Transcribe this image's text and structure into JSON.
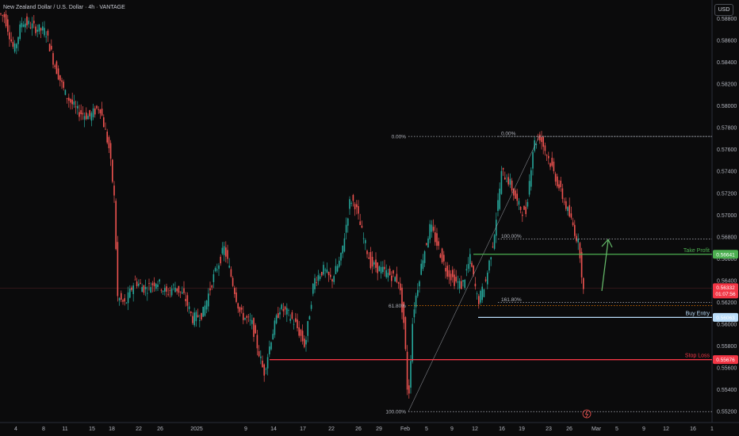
{
  "header": {
    "title": "New Zealand Dollar / U.S. Dollar · 4h · VANTAGE",
    "currency_button": "USD"
  },
  "colors": {
    "background": "#0b0b0c",
    "bull": "#26a69a",
    "bear": "#ef5350",
    "take_profit": "#4caf50",
    "stop_loss": "#f23645",
    "buy_entry": "#bbdefb",
    "fib_line": "#b2b5be",
    "fib_618": "#f57c00",
    "arrow": "#66bb6a"
  },
  "chart_data": {
    "type": "candlestick",
    "symbol": "New Zealand Dollar / U.S. Dollar",
    "timeframe": "4h",
    "ylim": [
      0.551,
      0.5897
    ],
    "y_ticks": [
      "0.58800",
      "0.58600",
      "0.58400",
      "0.58200",
      "0.58000",
      "0.57800",
      "0.57600",
      "0.57400",
      "0.57200",
      "0.57000",
      "0.56800",
      "0.56600",
      "0.56400",
      "0.56200",
      "0.56000",
      "0.55800",
      "0.55600",
      "0.55400",
      "0.55200"
    ],
    "x_ticks": [
      "4",
      "8",
      "11",
      "15",
      "18",
      "22",
      "26",
      "2025",
      "9",
      "14",
      "17",
      "22",
      "26",
      "29",
      "Feb",
      "5",
      "9",
      "12",
      "16",
      "19",
      "23",
      "26",
      "Mar",
      "5",
      "9",
      "12",
      "16",
      "1"
    ],
    "price_path": [
      [
        0,
        0.5885
      ],
      [
        8,
        0.5882
      ],
      [
        20,
        0.585
      ],
      [
        30,
        0.5878
      ],
      [
        45,
        0.5872
      ],
      [
        60,
        0.5868
      ],
      [
        70,
        0.584
      ],
      [
        85,
        0.581
      ],
      [
        100,
        0.5795
      ],
      [
        115,
        0.579
      ],
      [
        128,
        0.58
      ],
      [
        140,
        0.576
      ],
      [
        147,
        0.571
      ],
      [
        150,
        0.5625
      ],
      [
        160,
        0.5618
      ],
      [
        172,
        0.564
      ],
      [
        185,
        0.5632
      ],
      [
        200,
        0.564
      ],
      [
        212,
        0.5628
      ],
      [
        222,
        0.5635
      ],
      [
        235,
        0.5625
      ],
      [
        245,
        0.5605
      ],
      [
        258,
        0.561
      ],
      [
        270,
        0.564
      ],
      [
        285,
        0.567
      ],
      [
        295,
        0.564
      ],
      [
        305,
        0.561
      ],
      [
        320,
        0.56
      ],
      [
        335,
        0.5555
      ],
      [
        345,
        0.559
      ],
      [
        355,
        0.5615
      ],
      [
        365,
        0.561
      ],
      [
        375,
        0.56
      ],
      [
        387,
        0.558
      ],
      [
        398,
        0.564
      ],
      [
        410,
        0.565
      ],
      [
        420,
        0.564
      ],
      [
        432,
        0.566
      ],
      [
        444,
        0.5715
      ],
      [
        450,
        0.571
      ],
      [
        460,
        0.568
      ],
      [
        470,
        0.5655
      ],
      [
        482,
        0.565
      ],
      [
        495,
        0.5645
      ],
      [
        505,
        0.564
      ],
      [
        512,
        0.5598
      ],
      [
        517,
        0.5525
      ],
      [
        523,
        0.561
      ],
      [
        535,
        0.566
      ],
      [
        545,
        0.569
      ],
      [
        555,
        0.567
      ],
      [
        565,
        0.565
      ],
      [
        575,
        0.564
      ],
      [
        585,
        0.5635
      ],
      [
        595,
        0.566
      ],
      [
        605,
        0.562
      ],
      [
        615,
        0.564
      ],
      [
        625,
        0.568
      ],
      [
        635,
        0.574
      ],
      [
        645,
        0.573
      ],
      [
        655,
        0.571
      ],
      [
        665,
        0.57
      ],
      [
        675,
        0.5765
      ],
      [
        683,
        0.5772
      ],
      [
        695,
        0.575
      ],
      [
        705,
        0.573
      ],
      [
        715,
        0.571
      ],
      [
        725,
        0.569
      ],
      [
        733,
        0.567
      ],
      [
        738,
        0.563
      ]
    ],
    "current_price": "0.56332",
    "countdown": "01:07:56",
    "levels": {
      "take_profit": {
        "label": "Take Profit",
        "value": 0.56641,
        "badge": "0.56641"
      },
      "buy_entry": {
        "label": "Buy Entry",
        "value": 0.56063,
        "badge": "0.56063"
      },
      "stop_loss": {
        "label": "Stop Loss",
        "value": 0.55676,
        "badge": "0.55676"
      }
    },
    "fib_left": [
      {
        "label": "0.00%",
        "value": 0.5772
      },
      {
        "label": "61.80%",
        "value": 0.5617
      },
      {
        "label": "100.00%",
        "value": 0.552
      }
    ],
    "fib_right": [
      {
        "label": "0.00%",
        "value": 0.5772
      },
      {
        "label": "100.00%",
        "value": 0.5678
      },
      {
        "label": "161.80%",
        "value": 0.562
      }
    ]
  }
}
